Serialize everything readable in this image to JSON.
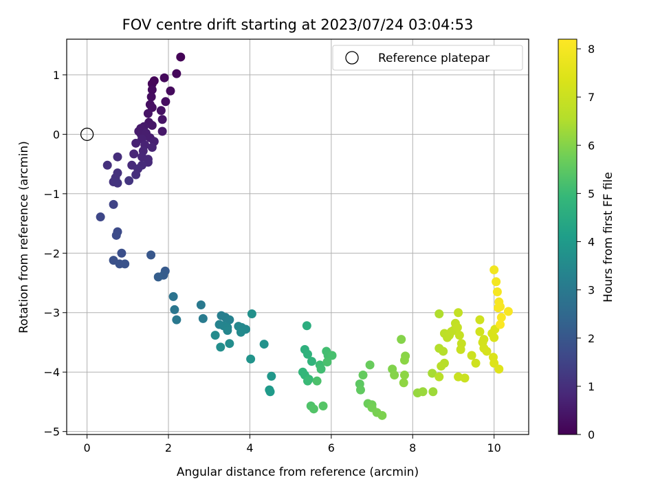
{
  "chart_data": {
    "type": "scatter",
    "title": "FOV centre drift starting at 2023/07/24 03:04:53",
    "xlabel": "Angular distance from reference (arcmin)",
    "ylabel": "Rotation from reference (arcmin)",
    "xlim": [
      -0.5,
      10.85
    ],
    "ylim": [
      -5.05,
      1.6
    ],
    "xticks": [
      0,
      2,
      4,
      6,
      8,
      10
    ],
    "yticks": [
      1,
      0,
      -1,
      -2,
      -3,
      -4,
      -5
    ],
    "xtick_labels": [
      "0",
      "2",
      "4",
      "6",
      "8",
      "10"
    ],
    "ytick_labels": [
      "1",
      "0",
      "−1",
      "−2",
      "−3",
      "−4",
      "−5"
    ],
    "grid": true,
    "legend": {
      "location": "top-right",
      "entries": [
        "Reference platepar"
      ]
    },
    "reference_point": {
      "x": 0,
      "y": 0
    },
    "colorbar": {
      "label": "Hours from first FF file",
      "range": [
        0,
        8.2
      ],
      "ticks": [
        0,
        1,
        2,
        3,
        4,
        5,
        6,
        7,
        8
      ],
      "tick_labels": [
        "0",
        "1",
        "2",
        "3",
        "4",
        "5",
        "6",
        "7",
        "8"
      ],
      "colormap": "viridis"
    },
    "points": [
      [
        2.3,
        1.3,
        0.05
      ],
      [
        1.65,
        0.9,
        0.1
      ],
      [
        1.6,
        0.85,
        0.12
      ],
      [
        2.2,
        1.02,
        0.15
      ],
      [
        1.9,
        0.95,
        0.18
      ],
      [
        2.05,
        0.73,
        0.2
      ],
      [
        1.6,
        0.75,
        0.22
      ],
      [
        1.58,
        0.63,
        0.25
      ],
      [
        1.93,
        0.55,
        0.28
      ],
      [
        1.55,
        0.5,
        0.3
      ],
      [
        1.6,
        0.45,
        0.32
      ],
      [
        1.82,
        0.4,
        0.35
      ],
      [
        1.5,
        0.35,
        0.38
      ],
      [
        1.85,
        0.25,
        0.4
      ],
      [
        1.52,
        0.2,
        0.42
      ],
      [
        1.6,
        0.15,
        0.45
      ],
      [
        1.85,
        0.05,
        0.48
      ],
      [
        1.4,
        0.13,
        0.5
      ],
      [
        1.32,
        0.1,
        0.52
      ],
      [
        1.27,
        0.05,
        0.55
      ],
      [
        1.33,
        0.0,
        0.58
      ],
      [
        1.45,
        0.02,
        0.6
      ],
      [
        1.55,
        -0.06,
        0.62
      ],
      [
        1.35,
        -0.08,
        0.65
      ],
      [
        1.65,
        -0.12,
        0.68
      ],
      [
        1.2,
        -0.15,
        0.7
      ],
      [
        1.42,
        -0.18,
        0.72
      ],
      [
        1.6,
        -0.22,
        0.75
      ],
      [
        1.38,
        -0.28,
        0.78
      ],
      [
        1.15,
        -0.33,
        0.8
      ],
      [
        1.35,
        -0.38,
        0.82
      ],
      [
        1.5,
        -0.42,
        0.85
      ],
      [
        1.5,
        -0.47,
        0.88
      ],
      [
        1.1,
        -0.52,
        0.9
      ],
      [
        1.35,
        -0.52,
        0.92
      ],
      [
        1.25,
        -0.58,
        0.95
      ],
      [
        0.75,
        -0.38,
        0.98
      ],
      [
        1.2,
        -0.68,
        1.0
      ],
      [
        0.5,
        -0.52,
        1.03
      ],
      [
        0.75,
        -0.65,
        1.05
      ],
      [
        0.7,
        -0.73,
        1.08
      ],
      [
        0.65,
        -0.8,
        1.1
      ],
      [
        0.75,
        -0.82,
        1.12
      ],
      [
        1.03,
        -0.78,
        1.15
      ],
      [
        0.65,
        -1.18,
        1.5
      ],
      [
        0.33,
        -1.39,
        1.6
      ],
      [
        0.75,
        -1.64,
        1.7
      ],
      [
        0.72,
        -1.7,
        1.72
      ],
      [
        0.85,
        -2.0,
        1.8
      ],
      [
        0.65,
        -2.12,
        1.85
      ],
      [
        0.8,
        -2.18,
        1.88
      ],
      [
        0.93,
        -2.18,
        1.9
      ],
      [
        1.57,
        -2.03,
        2.0
      ],
      [
        1.92,
        -2.3,
        2.1
      ],
      [
        1.88,
        -2.37,
        2.15
      ],
      [
        1.75,
        -2.4,
        2.2
      ],
      [
        2.12,
        -2.73,
        2.8
      ],
      [
        2.15,
        -2.95,
        2.9
      ],
      [
        2.2,
        -3.12,
        2.95
      ],
      [
        2.8,
        -2.87,
        3.0
      ],
      [
        2.85,
        -3.1,
        3.05
      ],
      [
        3.3,
        -3.05,
        3.15
      ],
      [
        3.4,
        -3.08,
        3.2
      ],
      [
        3.5,
        -3.12,
        3.25
      ],
      [
        3.25,
        -3.2,
        3.3
      ],
      [
        3.35,
        -3.22,
        3.35
      ],
      [
        3.45,
        -3.25,
        3.38
      ],
      [
        3.45,
        -3.3,
        3.4
      ],
      [
        3.72,
        -3.23,
        3.42
      ],
      [
        3.8,
        -3.25,
        3.45
      ],
      [
        3.9,
        -3.28,
        3.48
      ],
      [
        3.78,
        -3.33,
        3.5
      ],
      [
        3.15,
        -3.38,
        3.55
      ],
      [
        3.5,
        -3.52,
        3.6
      ],
      [
        3.28,
        -3.58,
        3.62
      ],
      [
        4.05,
        -3.02,
        3.7
      ],
      [
        4.35,
        -3.53,
        3.75
      ],
      [
        4.02,
        -3.78,
        3.8
      ],
      [
        4.53,
        -4.07,
        3.9
      ],
      [
        4.48,
        -4.3,
        3.95
      ],
      [
        4.5,
        -4.33,
        4.0
      ],
      [
        5.4,
        -3.22,
        4.6
      ],
      [
        5.35,
        -3.62,
        4.7
      ],
      [
        5.42,
        -3.7,
        4.75
      ],
      [
        5.52,
        -3.82,
        4.8
      ],
      [
        5.3,
        -4.0,
        4.85
      ],
      [
        5.35,
        -4.05,
        4.9
      ],
      [
        5.45,
        -4.12,
        4.95
      ],
      [
        5.42,
        -4.15,
        5.0
      ],
      [
        5.72,
        -3.88,
        5.05
      ],
      [
        5.75,
        -3.95,
        5.1
      ],
      [
        5.88,
        -3.65,
        5.12
      ],
      [
        5.92,
        -3.72,
        5.15
      ],
      [
        6.02,
        -3.72,
        5.2
      ],
      [
        5.9,
        -3.83,
        5.22
      ],
      [
        5.65,
        -4.15,
        5.25
      ],
      [
        5.5,
        -4.57,
        5.3
      ],
      [
        5.57,
        -4.62,
        5.35
      ],
      [
        5.8,
        -4.57,
        5.4
      ],
      [
        6.7,
        -4.2,
        5.5
      ],
      [
        6.72,
        -4.3,
        5.55
      ],
      [
        6.78,
        -4.05,
        5.6
      ],
      [
        6.95,
        -3.88,
        5.65
      ],
      [
        6.9,
        -4.53,
        5.7
      ],
      [
        7.0,
        -4.55,
        5.75
      ],
      [
        7.0,
        -4.6,
        5.8
      ],
      [
        7.12,
        -4.68,
        5.85
      ],
      [
        7.25,
        -4.73,
        5.9
      ],
      [
        7.5,
        -3.95,
        5.95
      ],
      [
        7.55,
        -4.05,
        6.0
      ],
      [
        7.72,
        -3.45,
        6.0
      ],
      [
        7.82,
        -3.73,
        6.05
      ],
      [
        7.8,
        -3.8,
        6.08
      ],
      [
        7.8,
        -4.05,
        6.1
      ],
      [
        7.78,
        -4.18,
        6.12
      ],
      [
        8.12,
        -4.35,
        6.2
      ],
      [
        8.25,
        -4.33,
        6.25
      ],
      [
        8.5,
        -4.33,
        6.3
      ],
      [
        8.48,
        -4.02,
        6.4
      ],
      [
        8.65,
        -3.02,
        6.5
      ],
      [
        8.65,
        -3.6,
        6.55
      ],
      [
        8.75,
        -3.65,
        6.58
      ],
      [
        8.78,
        -3.85,
        6.6
      ],
      [
        8.7,
        -3.9,
        6.62
      ],
      [
        8.65,
        -4.08,
        6.65
      ],
      [
        8.78,
        -3.35,
        6.7
      ],
      [
        8.85,
        -3.42,
        6.72
      ],
      [
        8.9,
        -3.38,
        6.75
      ],
      [
        8.95,
        -3.32,
        6.78
      ],
      [
        9.0,
        -3.3,
        6.8
      ],
      [
        9.05,
        -3.18,
        6.82
      ],
      [
        9.12,
        -3.0,
        6.85
      ],
      [
        9.1,
        -3.25,
        6.88
      ],
      [
        9.15,
        -3.38,
        6.9
      ],
      [
        9.2,
        -3.52,
        6.92
      ],
      [
        9.18,
        -3.62,
        6.95
      ],
      [
        9.12,
        -4.08,
        6.98
      ],
      [
        9.28,
        -4.1,
        7.0
      ],
      [
        9.45,
        -3.72,
        7.05
      ],
      [
        9.55,
        -3.85,
        7.08
      ],
      [
        9.65,
        -3.12,
        7.1
      ],
      [
        9.65,
        -3.32,
        7.15
      ],
      [
        9.75,
        -3.45,
        7.18
      ],
      [
        9.72,
        -3.5,
        7.2
      ],
      [
        9.75,
        -3.6,
        7.22
      ],
      [
        9.82,
        -3.65,
        7.25
      ],
      [
        9.95,
        -3.35,
        7.3
      ],
      [
        10.0,
        -3.42,
        7.32
      ],
      [
        10.02,
        -3.28,
        7.35
      ],
      [
        9.98,
        -3.75,
        7.38
      ],
      [
        10.0,
        -3.85,
        7.4
      ],
      [
        10.12,
        -3.95,
        7.45
      ],
      [
        10.0,
        -2.28,
        7.9
      ],
      [
        10.05,
        -2.48,
        7.95
      ],
      [
        10.08,
        -2.65,
        8.0
      ],
      [
        10.12,
        -2.82,
        8.02
      ],
      [
        10.15,
        -2.9,
        8.05
      ],
      [
        10.1,
        -2.92,
        8.05
      ],
      [
        10.35,
        -2.98,
        8.08
      ],
      [
        10.18,
        -3.08,
        8.1
      ],
      [
        10.15,
        -3.2,
        8.12
      ]
    ]
  }
}
